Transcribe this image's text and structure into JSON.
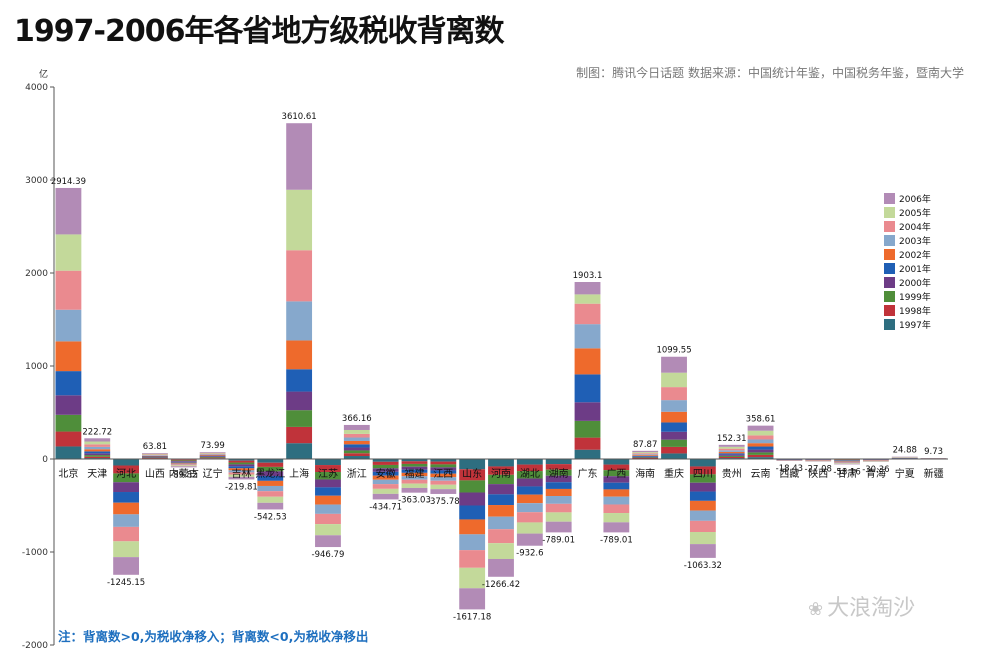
{
  "title": "1997-2006年各省地方级税收背离数",
  "source": "制图：腾讯今日话题    数据来源：中国统计年鉴，中国税务年鉴，暨南大学",
  "note": "注：背离数>0,为税收净移入；背离数<0,为税收净移出",
  "watermark": "大浪淘沙",
  "watermark_icon": "wechat-icon",
  "colors": {
    "1997年": "#2e6e80",
    "1998年": "#c0333a",
    "1999年": "#4f8e3a",
    "2000年": "#6d3c86",
    "2001年": "#1f5fb5",
    "2002年": "#ee6a2c",
    "2003年": "#86a8cc",
    "2004年": "#ea8a8f",
    "2005年": "#c3d99a",
    "2006年": "#b28bb6"
  },
  "chart_data": {
    "type": "bar",
    "stacked": true,
    "ylabel": "亿",
    "ylim": [
      -2000,
      4000
    ],
    "yticks": [
      -2000,
      -1000,
      0,
      1000,
      2000,
      3000,
      4000
    ],
    "legend_position": "right",
    "categories": [
      "北京",
      "天津",
      "河北",
      "山西",
      "内蒙古",
      "辽宁",
      "吉林",
      "黑龙江",
      "上海",
      "江苏",
      "浙江",
      "安徽",
      "福建",
      "江西",
      "山东",
      "河南",
      "湖北",
      "湖南",
      "广东",
      "广西",
      "海南",
      "重庆",
      "四川",
      "贵州",
      "云南",
      "西藏",
      "陕西",
      "甘肃",
      "青海",
      "宁夏",
      "新疆"
    ],
    "totals": [
      2914.39,
      222.72,
      -1245.15,
      63.81,
      -89.82,
      73.99,
      -219.81,
      -542.53,
      3610.61,
      -946.79,
      366.16,
      -434.71,
      -363.03,
      -375.78,
      -1617.18,
      -1266.42,
      -932.6,
      -789.01,
      1903.1,
      -789.01,
      87.87,
      1099.55,
      -1063.32,
      152.31,
      358.61,
      -18.43,
      -27.08,
      -58.16,
      -30.36,
      24.88,
      9.73
    ],
    "total_labels": [
      "2914.39",
      "222.72",
      "-1245.15",
      "63.81",
      "-89.82",
      "73.99",
      "-219.81",
      "-542.53",
      "3610.61",
      "-946.79",
      "366.16",
      "-434.71",
      "-363.03",
      "-375.78",
      "-1617.18",
      "-1266.42",
      "-932.6",
      "-789.01",
      "1903.1",
      "-789.01",
      "87.87",
      "1099.55",
      "-1063.32",
      "152.31",
      "358.61",
      "-18.43",
      "-27.08",
      "-58.16",
      "-30.36",
      "24.88",
      "9.73"
    ],
    "series": [
      {
        "name": "1997年",
        "values": [
          135,
          10,
          -70,
          5,
          -7,
          8,
          -18,
          -40,
          170,
          -65,
          32,
          -30,
          -25,
          -28,
          -110,
          -80,
          -60,
          -55,
          100,
          -60,
          5,
          60,
          -80,
          10,
          20,
          -2,
          -2,
          -4,
          -2,
          2,
          1
        ]
      },
      {
        "name": "1998年",
        "values": [
          160,
          15,
          -85,
          5,
          -8,
          7,
          -20,
          -45,
          175,
          -75,
          30,
          -34,
          -28,
          -30,
          -120,
          -90,
          -70,
          -60,
          130,
          -60,
          6,
          70,
          -85,
          12,
          24,
          -2,
          -2,
          -5,
          -2,
          2,
          1
        ]
      },
      {
        "name": "1999年",
        "values": [
          180,
          17,
          -95,
          5,
          -8,
          7,
          -20,
          -48,
          180,
          -80,
          30,
          -36,
          -30,
          -32,
          -130,
          -100,
          -80,
          -65,
          180,
          -65,
          6,
          78,
          -90,
          12,
          27,
          -2,
          -3,
          -5,
          -3,
          2,
          1
        ]
      },
      {
        "name": "2000年",
        "values": [
          210,
          19,
          -105,
          6,
          -8,
          7,
          -21,
          -50,
          200,
          -85,
          32,
          -38,
          -32,
          -33,
          -140,
          -110,
          -85,
          -70,
          200,
          -70,
          7,
          85,
          -95,
          13,
          30,
          -2,
          -3,
          -5,
          -3,
          2,
          1
        ]
      },
      {
        "name": "2001年",
        "values": [
          260,
          21,
          -115,
          6,
          -9,
          7,
          -21,
          -52,
          240,
          -90,
          34,
          -41,
          -34,
          -35,
          -150,
          -115,
          -88,
          -72,
          300,
          -72,
          8,
          100,
          -100,
          14,
          33,
          -2,
          -3,
          -6,
          -3,
          2,
          1
        ]
      },
      {
        "name": "2002年",
        "values": [
          320,
          23,
          -125,
          7,
          -9,
          7,
          -22,
          -55,
          310,
          -95,
          36,
          -44,
          -36,
          -37,
          -160,
          -125,
          -92,
          -76,
          280,
          -78,
          9,
          115,
          -105,
          15,
          36,
          -2,
          -3,
          -6,
          -3,
          3,
          1
        ]
      },
      {
        "name": "2003年",
        "values": [
          340,
          25,
          -135,
          7,
          -9,
          7,
          -22,
          -56,
          420,
          -100,
          37,
          -47,
          -38,
          -39,
          -170,
          -135,
          -97,
          -84,
          260,
          -84,
          10,
          125,
          -110,
          17,
          40,
          -2,
          -3,
          -6,
          -3,
          3,
          1
        ]
      },
      {
        "name": "2004年",
        "values": [
          420,
          28,
          -155,
          7,
          -10,
          8,
          -23,
          -60,
          550,
          -110,
          39,
          -51,
          -42,
          -43,
          -190,
          -150,
          -110,
          -92,
          220,
          -92,
          11,
          140,
          -120,
          18,
          44,
          -2,
          -3,
          -7,
          -4,
          3,
          1
        ]
      },
      {
        "name": "2005年",
        "values": [
          390,
          30,
          -170,
          8,
          -10,
          8,
          -25,
          -65,
          650,
          -120,
          42,
          -54,
          -46,
          -47,
          -220,
          -170,
          -120,
          -100,
          100,
          -100,
          12,
          155,
          -130,
          20,
          50,
          -2,
          -3,
          -7,
          -4,
          3,
          1
        ]
      },
      {
        "name": "2006年",
        "values": [
          499.39,
          34.72,
          -190.15,
          7.81,
          -11.82,
          7.99,
          -27.81,
          -71.53,
          715.61,
          -126.79,
          54.16,
          -59.71,
          -51.03,
          -51.78,
          -227.18,
          -191.42,
          -130.6,
          -115.01,
          133.1,
          -108.01,
          13.87,
          171.55,
          -148.32,
          21.31,
          54.61,
          -2.43,
          -3.08,
          -7.16,
          -3.36,
          2.88,
          0.73
        ]
      }
    ]
  }
}
